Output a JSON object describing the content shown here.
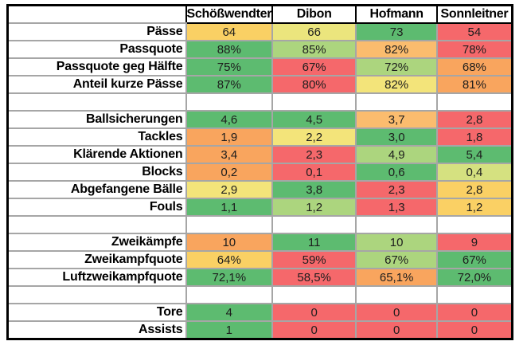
{
  "chart_data": {
    "type": "table",
    "title": "",
    "corner_label": "",
    "columns": [
      "Schößwendter",
      "Dibon",
      "Hofmann",
      "Sonnleitner"
    ],
    "palette": {
      "green": "#5DBB70",
      "lightgreen": "#ACD57E",
      "palegreen": "#D5E180",
      "paleyellow": "#EBE57D",
      "yellow": "#F3E47A",
      "gold": "#FAD064",
      "lightorange": "#FBBC6E",
      "orange": "#F9A55E",
      "red": "#F5686B"
    },
    "grid_color": "#A6A6A6",
    "outer_border_color": "#000000",
    "rows": [
      {
        "label": "Pässe",
        "values": [
          "64",
          "66",
          "73",
          "54"
        ],
        "colors": [
          "gold",
          "paleyellow",
          "green",
          "red"
        ]
      },
      {
        "label": "Passquote",
        "values": [
          "88%",
          "85%",
          "82%",
          "78%"
        ],
        "colors": [
          "green",
          "lightgreen",
          "lightorange",
          "red"
        ]
      },
      {
        "label": "Passquote geg Hälfte",
        "values": [
          "75%",
          "67%",
          "72%",
          "68%"
        ],
        "colors": [
          "green",
          "red",
          "lightgreen",
          "orange"
        ]
      },
      {
        "label": "Anteil kurze Pässe",
        "values": [
          "87%",
          "80%",
          "82%",
          "81%"
        ],
        "colors": [
          "green",
          "red",
          "yellow",
          "orange"
        ]
      },
      {
        "spacer": true,
        "label": "",
        "values": [
          "",
          "",
          "",
          ""
        ]
      },
      {
        "label": "Ballsicherungen",
        "values": [
          "4,6",
          "4,5",
          "3,7",
          "2,8"
        ],
        "colors": [
          "green",
          "green",
          "lightorange",
          "red"
        ]
      },
      {
        "label": "Tackles",
        "values": [
          "1,9",
          "2,2",
          "3,0",
          "1,8"
        ],
        "colors": [
          "orange",
          "yellow",
          "green",
          "red"
        ]
      },
      {
        "label": "Klärende Aktionen",
        "values": [
          "3,4",
          "2,3",
          "4,9",
          "5,4"
        ],
        "colors": [
          "orange",
          "red",
          "lightgreen",
          "green"
        ]
      },
      {
        "label": "Blocks",
        "values": [
          "0,2",
          "0,1",
          "0,6",
          "0,4"
        ],
        "colors": [
          "orange",
          "red",
          "green",
          "palegreen"
        ]
      },
      {
        "label": "Abgefangene Bälle",
        "values": [
          "2,9",
          "3,8",
          "2,3",
          "2,8"
        ],
        "colors": [
          "yellow",
          "green",
          "red",
          "gold"
        ]
      },
      {
        "label": "Fouls",
        "values": [
          "1,1",
          "1,2",
          "1,3",
          "1,2"
        ],
        "colors": [
          "green",
          "lightgreen",
          "red",
          "gold"
        ]
      },
      {
        "spacer": true,
        "label": "",
        "values": [
          "",
          "",
          "",
          ""
        ]
      },
      {
        "label": "Zweikämpfe",
        "values": [
          "10",
          "11",
          "10",
          "9"
        ],
        "colors": [
          "orange",
          "green",
          "lightgreen",
          "red"
        ]
      },
      {
        "label": "Zweikampfquote",
        "values": [
          "64%",
          "59%",
          "67%",
          "67%"
        ],
        "colors": [
          "gold",
          "red",
          "lightgreen",
          "green"
        ]
      },
      {
        "label": "Luftzweikampfquote",
        "values": [
          "72,1%",
          "58,5%",
          "65,1%",
          "72,0%"
        ],
        "colors": [
          "green",
          "red",
          "orange",
          "green"
        ]
      },
      {
        "spacer": true,
        "label": "",
        "values": [
          "",
          "",
          "",
          ""
        ]
      },
      {
        "label": "Tore",
        "values": [
          "4",
          "0",
          "0",
          "0"
        ],
        "colors": [
          "green",
          "red",
          "red",
          "red"
        ]
      },
      {
        "label": "Assists",
        "values": [
          "1",
          "0",
          "0",
          "0"
        ],
        "colors": [
          "green",
          "red",
          "red",
          "red"
        ]
      }
    ]
  }
}
